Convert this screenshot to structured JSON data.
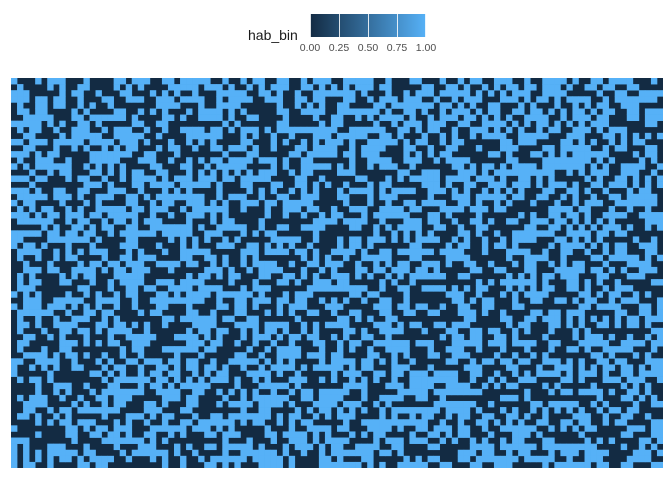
{
  "chart_data": {
    "type": "heatmap",
    "title": "",
    "xlabel": "",
    "ylabel": "",
    "fill_variable": "hab_bin",
    "legend": {
      "title": "hab_bin",
      "placement": "top",
      "ticks": [
        "0.00",
        "0.25",
        "0.50",
        "0.75",
        "1.00"
      ],
      "range": [
        0,
        1
      ]
    },
    "colors": {
      "low": "#132B43",
      "high": "#56B1F7",
      "background": "#ffffff"
    },
    "grid": {
      "columns": 108,
      "rows": 64
    },
    "values_description_note": null,
    "pattern_seed": 7,
    "proportion_habitat": 0.5
  }
}
